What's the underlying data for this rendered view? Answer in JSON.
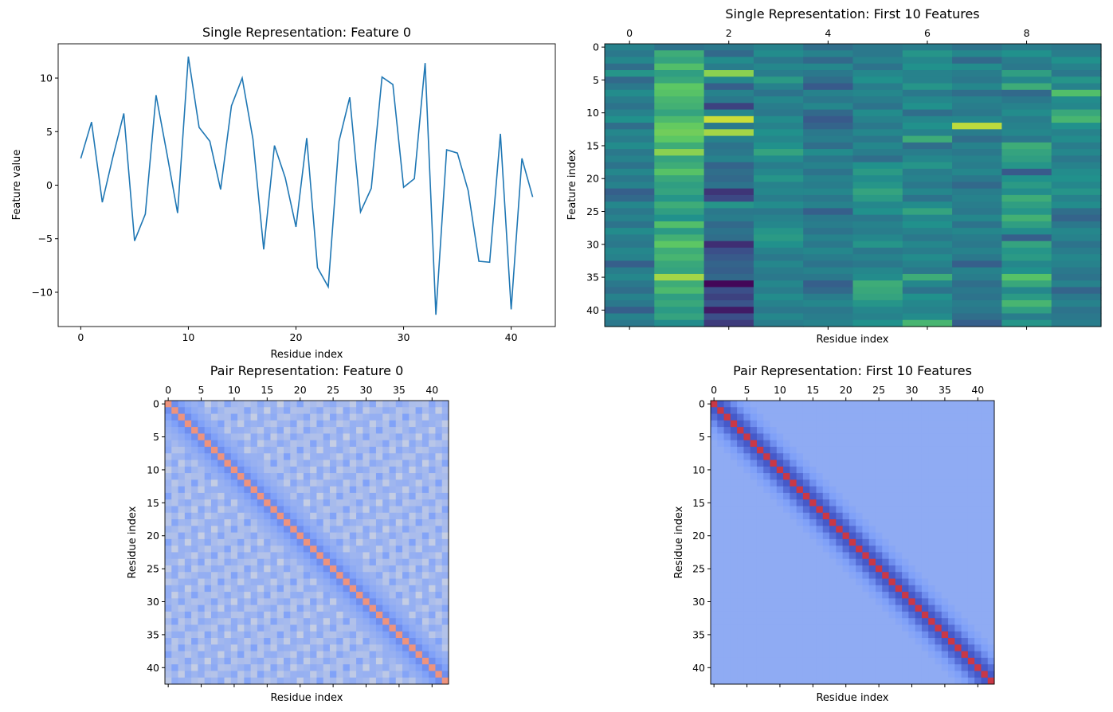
{
  "chart_data": [
    {
      "type": "line",
      "title": "Single Representation: Feature 0",
      "xlabel": "Residue index",
      "ylabel": "Feature value",
      "xlim": [
        -2.1,
        44.1
      ],
      "ylim": [
        -13.2,
        13.2
      ],
      "x_ticks": [
        0,
        10,
        20,
        30,
        40
      ],
      "y_ticks": [
        -10,
        -5,
        0,
        5,
        10
      ],
      "y_tick_labels": [
        "−10",
        "−5",
        "0",
        "5",
        "10"
      ],
      "color": "#1f77b4",
      "x": [
        0,
        1,
        2,
        3,
        4,
        5,
        6,
        7,
        8,
        9,
        10,
        11,
        12,
        13,
        14,
        15,
        16,
        17,
        18,
        19,
        20,
        21,
        22,
        23,
        24,
        25,
        26,
        27,
        28,
        29,
        30,
        31,
        32,
        33,
        34,
        35,
        36,
        37,
        38,
        39,
        40,
        41,
        42
      ],
      "y": [
        2.5,
        5.9,
        -1.6,
        2.7,
        6.7,
        -5.2,
        -2.7,
        8.4,
        3.0,
        -2.6,
        12.0,
        5.4,
        4.1,
        -0.4,
        7.4,
        10.0,
        4.3,
        -6.0,
        3.7,
        0.7,
        -3.9,
        4.4,
        -7.7,
        -9.5,
        4.1,
        8.2,
        -2.5,
        -0.3,
        10.1,
        9.4,
        -0.2,
        0.6,
        11.4,
        -12.1,
        3.3,
        3.0,
        -0.5,
        -7.1,
        -7.2,
        4.8,
        -11.6,
        2.5,
        -1.1
      ]
    },
    {
      "type": "heatmap",
      "title": "Single Representation: First 10 Features",
      "xlabel": "Residue index",
      "ylabel": "Feature index",
      "colormap": "viridis",
      "x_ticks": [
        0,
        2,
        4,
        6,
        8
      ],
      "y_ticks": [
        0,
        5,
        10,
        15,
        20,
        25,
        30,
        35,
        40
      ],
      "rows": 43,
      "cols": 10,
      "values": [
        [
          0.44,
          0.38,
          0.4,
          0.44,
          0.36,
          0.4,
          0.42,
          0.38,
          0.42,
          0.4
        ],
        [
          0.4,
          0.62,
          0.34,
          0.48,
          0.44,
          0.4,
          0.52,
          0.46,
          0.5,
          0.42
        ],
        [
          0.46,
          0.58,
          0.48,
          0.4,
          0.34,
          0.44,
          0.46,
          0.34,
          0.42,
          0.5
        ],
        [
          0.36,
          0.7,
          0.42,
          0.46,
          0.46,
          0.38,
          0.5,
          0.48,
          0.4,
          0.44
        ],
        [
          0.52,
          0.56,
          0.82,
          0.42,
          0.4,
          0.46,
          0.44,
          0.42,
          0.56,
          0.4
        ],
        [
          0.34,
          0.6,
          0.46,
          0.54,
          0.36,
          0.5,
          0.44,
          0.4,
          0.46,
          0.52
        ],
        [
          0.4,
          0.74,
          0.3,
          0.44,
          0.28,
          0.42,
          0.52,
          0.46,
          0.62,
          0.44
        ],
        [
          0.48,
          0.72,
          0.44,
          0.38,
          0.44,
          0.46,
          0.4,
          0.36,
          0.34,
          0.7
        ],
        [
          0.42,
          0.66,
          0.4,
          0.46,
          0.4,
          0.42,
          0.46,
          0.44,
          0.4,
          0.48
        ],
        [
          0.38,
          0.64,
          0.2,
          0.42,
          0.46,
          0.38,
          0.5,
          0.42,
          0.44,
          0.46
        ],
        [
          0.44,
          0.58,
          0.46,
          0.4,
          0.34,
          0.48,
          0.36,
          0.4,
          0.48,
          0.6
        ],
        [
          0.5,
          0.68,
          0.92,
          0.48,
          0.28,
          0.44,
          0.46,
          0.46,
          0.42,
          0.66
        ],
        [
          0.36,
          0.76,
          0.4,
          0.44,
          0.32,
          0.4,
          0.5,
          0.9,
          0.44,
          0.5
        ],
        [
          0.46,
          0.78,
          0.86,
          0.5,
          0.4,
          0.46,
          0.44,
          0.42,
          0.46,
          0.44
        ],
        [
          0.42,
          0.74,
          0.44,
          0.46,
          0.42,
          0.4,
          0.62,
          0.36,
          0.4,
          0.48
        ],
        [
          0.48,
          0.62,
          0.38,
          0.5,
          0.36,
          0.46,
          0.36,
          0.44,
          0.62,
          0.42
        ],
        [
          0.4,
          0.82,
          0.4,
          0.58,
          0.48,
          0.42,
          0.42,
          0.4,
          0.58,
          0.46
        ],
        [
          0.44,
          0.58,
          0.44,
          0.48,
          0.4,
          0.36,
          0.46,
          0.44,
          0.56,
          0.4
        ],
        [
          0.38,
          0.62,
          0.32,
          0.42,
          0.44,
          0.5,
          0.52,
          0.42,
          0.52,
          0.44
        ],
        [
          0.46,
          0.72,
          0.36,
          0.46,
          0.38,
          0.54,
          0.42,
          0.46,
          0.28,
          0.48
        ],
        [
          0.4,
          0.6,
          0.34,
          0.52,
          0.44,
          0.48,
          0.44,
          0.4,
          0.5,
          0.5
        ],
        [
          0.44,
          0.56,
          0.38,
          0.44,
          0.42,
          0.52,
          0.4,
          0.34,
          0.54,
          0.46
        ],
        [
          0.3,
          0.58,
          0.16,
          0.46,
          0.46,
          0.58,
          0.46,
          0.42,
          0.48,
          0.52
        ],
        [
          0.34,
          0.52,
          0.22,
          0.42,
          0.4,
          0.54,
          0.38,
          0.44,
          0.62,
          0.44
        ],
        [
          0.46,
          0.62,
          0.52,
          0.48,
          0.44,
          0.46,
          0.48,
          0.42,
          0.56,
          0.48
        ],
        [
          0.4,
          0.56,
          0.4,
          0.4,
          0.3,
          0.5,
          0.58,
          0.4,
          0.52,
          0.36
        ],
        [
          0.44,
          0.5,
          0.42,
          0.44,
          0.4,
          0.4,
          0.46,
          0.46,
          0.64,
          0.32
        ],
        [
          0.38,
          0.7,
          0.34,
          0.46,
          0.42,
          0.44,
          0.5,
          0.38,
          0.56,
          0.4
        ],
        [
          0.48,
          0.54,
          0.38,
          0.52,
          0.38,
          0.42,
          0.44,
          0.46,
          0.48,
          0.46
        ],
        [
          0.42,
          0.64,
          0.36,
          0.54,
          0.44,
          0.46,
          0.4,
          0.42,
          0.3,
          0.44
        ],
        [
          0.4,
          0.74,
          0.14,
          0.5,
          0.4,
          0.52,
          0.46,
          0.4,
          0.58,
          0.38
        ],
        [
          0.46,
          0.62,
          0.24,
          0.44,
          0.46,
          0.4,
          0.42,
          0.44,
          0.52,
          0.42
        ],
        [
          0.44,
          0.66,
          0.28,
          0.4,
          0.42,
          0.44,
          0.48,
          0.4,
          0.54,
          0.46
        ],
        [
          0.3,
          0.6,
          0.32,
          0.46,
          0.38,
          0.4,
          0.44,
          0.3,
          0.46,
          0.44
        ],
        [
          0.42,
          0.58,
          0.3,
          0.42,
          0.44,
          0.46,
          0.4,
          0.44,
          0.5,
          0.4
        ],
        [
          0.46,
          0.86,
          0.34,
          0.4,
          0.4,
          0.48,
          0.62,
          0.42,
          0.72,
          0.38
        ],
        [
          0.4,
          0.62,
          0.02,
          0.46,
          0.3,
          0.62,
          0.46,
          0.36,
          0.6,
          0.44
        ],
        [
          0.36,
          0.68,
          0.24,
          0.42,
          0.34,
          0.6,
          0.38,
          0.4,
          0.46,
          0.32
        ],
        [
          0.44,
          0.56,
          0.2,
          0.48,
          0.42,
          0.58,
          0.5,
          0.38,
          0.54,
          0.4
        ],
        [
          0.4,
          0.6,
          0.26,
          0.44,
          0.46,
          0.52,
          0.46,
          0.42,
          0.66,
          0.44
        ],
        [
          0.3,
          0.54,
          0.08,
          0.4,
          0.4,
          0.46,
          0.44,
          0.4,
          0.56,
          0.38
        ],
        [
          0.44,
          0.58,
          0.24,
          0.46,
          0.42,
          0.44,
          0.48,
          0.36,
          0.42,
          0.4
        ],
        [
          0.4,
          0.48,
          0.18,
          0.42,
          0.44,
          0.5,
          0.66,
          0.3,
          0.52,
          0.42
        ]
      ]
    },
    {
      "type": "heatmap",
      "title": "Pair Representation: Feature 0",
      "xlabel": "Residue index",
      "ylabel": "Residue index",
      "colormap": "coolwarm",
      "x_ticks": [
        0,
        5,
        10,
        15,
        20,
        25,
        30,
        35,
        40
      ],
      "y_ticks": [
        0,
        5,
        10,
        15,
        20,
        25,
        30,
        35,
        40
      ],
      "size": 43,
      "pattern": "banded",
      "diagonal_value": 0.78,
      "off_diagonal_offsets": [
        1,
        2,
        3,
        4
      ],
      "off_diagonal_values": [
        0.2,
        0.26,
        0.3,
        0.32
      ],
      "background_range": [
        0.26,
        0.44
      ]
    },
    {
      "type": "heatmap",
      "title": "Pair Representation: First 10 Features",
      "xlabel": "Residue index",
      "ylabel": "Residue index",
      "colormap": "coolwarm",
      "x_ticks": [
        0,
        5,
        10,
        15,
        20,
        25,
        30,
        35,
        40
      ],
      "y_ticks": [
        0,
        5,
        10,
        15,
        20,
        25,
        30,
        35,
        40
      ],
      "size": 43,
      "pattern": "banded",
      "diagonal_value": 0.92,
      "off_diagonal_offsets": [
        1,
        2,
        3,
        4,
        5
      ],
      "off_diagonal_values": [
        0.04,
        0.1,
        0.2,
        0.26,
        0.28
      ],
      "background_value": 0.3
    }
  ]
}
